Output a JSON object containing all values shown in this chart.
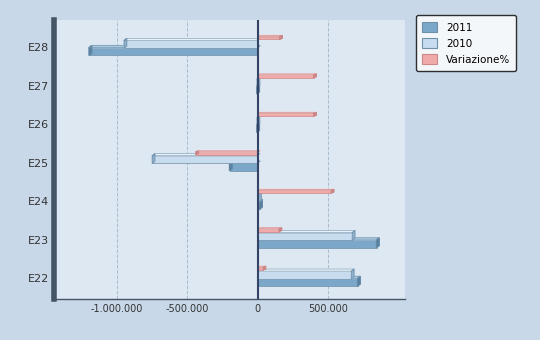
{
  "categories": [
    "E22",
    "E23",
    "E24",
    "E25",
    "E26",
    "E27",
    "E28"
  ],
  "series_2011": [
    712950,
    847719,
    15000,
    -200000,
    -5000,
    -5000,
    -1200000
  ],
  "series_2010": [
    668657,
    675000,
    8000,
    -750000,
    -3000,
    -3000,
    -950000
  ],
  "series_var": [
    6.62,
    25.59,
    87.5,
    -73.3,
    66.7,
    66.7,
    26.3
  ],
  "color_2011_face": "#7BA7C9",
  "color_2011_top": "#A8C8E0",
  "color_2011_side": "#5580A0",
  "color_2010_face": "#C8DCF0",
  "color_2010_top": "#E8F2FA",
  "color_2010_side": "#90B0CC",
  "color_var_face": "#F0AAAA",
  "color_var_top": "#F8CCCC",
  "color_var_side": "#CC8888",
  "bar_edge": "#7090A8",
  "legend_labels": [
    "2011",
    "2010",
    "Variazione%"
  ],
  "xlim": [
    -1450000,
    1050000
  ],
  "xticks": [
    -1000000,
    -500000,
    0,
    500000
  ],
  "xticklabels": [
    "-1.000.000",
    "-500.000",
    "0",
    "500.000"
  ],
  "background_color": "#C8D8E8",
  "plot_bg": "#DDE8F2",
  "grid_color": "#AABCCC",
  "var_scale": 6000,
  "figsize": [
    5.4,
    3.4
  ],
  "dpi": 100
}
